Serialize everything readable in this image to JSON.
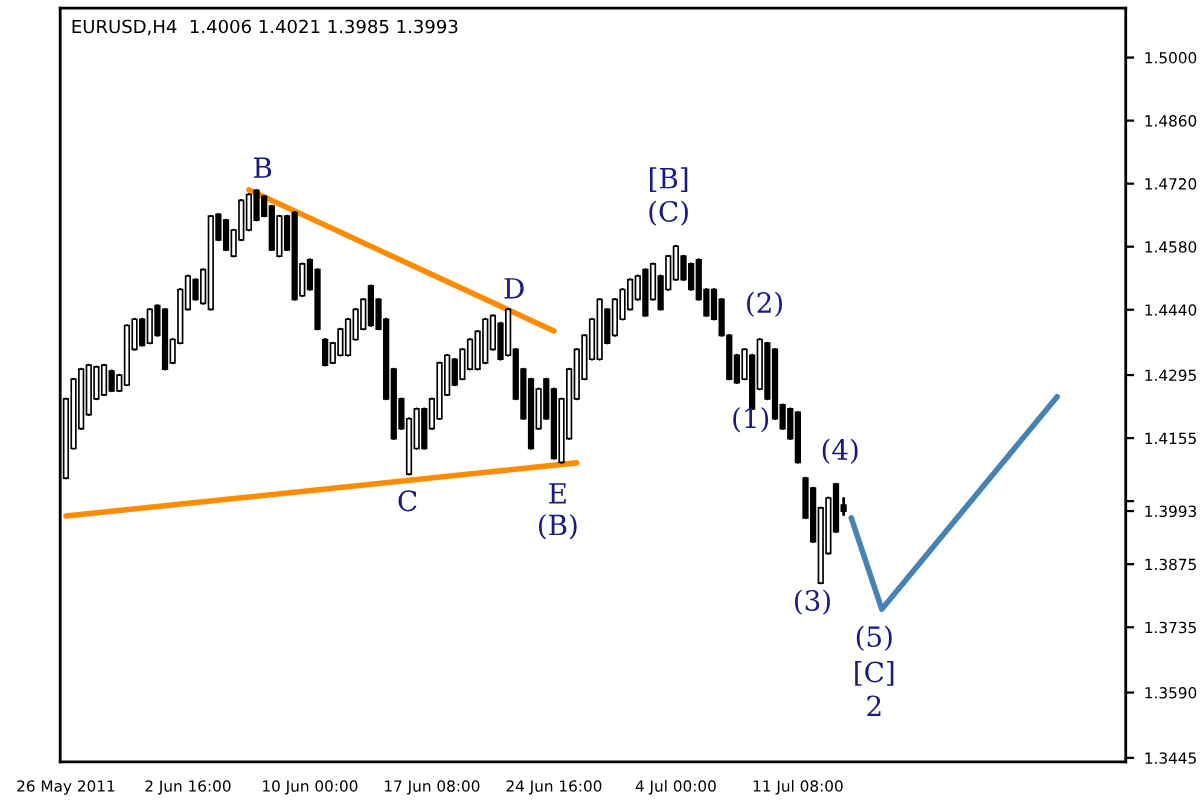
{
  "chart_data": {
    "type": "candlestick",
    "title": "EURUSD,H4  1.4006 1.4021 1.3985 1.3993",
    "categories": [
      "26 May 2011",
      null,
      null,
      null,
      null,
      null,
      null,
      null,
      null,
      null,
      null,
      null,
      null,
      null,
      null,
      null,
      "2 Jun 16:00",
      null,
      null,
      null,
      null,
      null,
      null,
      null,
      null,
      null,
      null,
      null,
      null,
      null,
      null,
      null,
      "10 Jun 00:00",
      null,
      null,
      null,
      null,
      null,
      null,
      null,
      null,
      null,
      null,
      null,
      null,
      null,
      null,
      null,
      "17 Jun 08:00",
      null,
      null,
      null,
      null,
      null,
      null,
      null,
      null,
      null,
      null,
      null,
      null,
      null,
      null,
      null,
      "24 Jun 16:00",
      null,
      null,
      null,
      null,
      null,
      null,
      null,
      null,
      null,
      null,
      null,
      null,
      null,
      null,
      null,
      "4 Jul 00:00",
      null,
      null,
      null,
      null,
      null,
      null,
      null,
      null,
      null,
      null,
      null,
      null,
      null,
      null,
      null,
      "11 Jul 08:00",
      null,
      null,
      null,
      null,
      null,
      null,
      null,
      null,
      null,
      null,
      null,
      null,
      null,
      null,
      null,
      null,
      null,
      null,
      null,
      null,
      null,
      null,
      null,
      null,
      null,
      null,
      null,
      null,
      null,
      null,
      null,
      null,
      null,
      null,
      null,
      null,
      null,
      null,
      null,
      null,
      null,
      null,
      null
    ],
    "ohlc": [
      [
        1.4066,
        1.4242,
        1.4066,
        1.4242
      ],
      [
        1.4132,
        1.4286,
        1.4132,
        1.4286
      ],
      [
        1.4176,
        1.4308,
        1.4176,
        1.4308
      ],
      [
        1.4207,
        1.4317,
        1.4207,
        1.4317
      ],
      [
        1.4242,
        1.4313,
        1.4242,
        1.4313
      ],
      [
        1.4251,
        1.4317,
        1.4251,
        1.4317
      ],
      [
        1.4304,
        1.4304,
        1.426,
        1.426
      ],
      [
        1.426,
        1.4295,
        1.426,
        1.4295
      ],
      [
        1.4273,
        1.4405,
        1.4273,
        1.4405
      ],
      [
        1.4352,
        1.4419,
        1.4352,
        1.4419
      ],
      [
        1.4419,
        1.4419,
        1.4361,
        1.4361
      ],
      [
        1.4366,
        1.4441,
        1.4366,
        1.4441
      ],
      [
        1.4449,
        1.4449,
        1.4383,
        1.4383
      ],
      [
        1.4441,
        1.4441,
        1.4308,
        1.4308
      ],
      [
        1.4322,
        1.4374,
        1.4322,
        1.4374
      ],
      [
        1.4366,
        1.4485,
        1.4366,
        1.4485
      ],
      [
        1.4441,
        1.4515,
        1.4441,
        1.4515
      ],
      [
        1.4507,
        1.4507,
        1.4463,
        1.4463
      ],
      [
        1.4454,
        1.4529,
        1.4454,
        1.4529
      ],
      [
        1.4441,
        1.4648,
        1.4441,
        1.4648
      ],
      [
        1.4652,
        1.4652,
        1.4595,
        1.4595
      ],
      [
        1.4639,
        1.4639,
        1.4573,
        1.4573
      ],
      [
        1.4559,
        1.4617,
        1.4559,
        1.4617
      ],
      [
        1.4595,
        1.4683,
        1.4595,
        1.4683
      ],
      [
        1.4617,
        1.4696,
        1.4617,
        1.4696
      ],
      [
        1.4705,
        1.4705,
        1.4639,
        1.4639
      ],
      [
        1.4692,
        1.4692,
        1.4648,
        1.4648
      ],
      [
        1.467,
        1.467,
        1.4573,
        1.4573
      ],
      [
        1.4559,
        1.4648,
        1.4559,
        1.4648
      ],
      [
        1.4648,
        1.4648,
        1.4573,
        1.4573
      ],
      [
        1.4656,
        1.4656,
        1.4463,
        1.4463
      ],
      [
        1.4471,
        1.4542,
        1.4471,
        1.4542
      ],
      [
        1.4551,
        1.4551,
        1.4485,
        1.4485
      ],
      [
        1.4529,
        1.4529,
        1.4397,
        1.4397
      ],
      [
        1.4374,
        1.4374,
        1.4317,
        1.4317
      ],
      [
        1.4322,
        1.4366,
        1.4322,
        1.4366
      ],
      [
        1.4339,
        1.4397,
        1.4339,
        1.4397
      ],
      [
        1.4339,
        1.4419,
        1.4339,
        1.4419
      ],
      [
        1.4374,
        1.4441,
        1.4374,
        1.4441
      ],
      [
        1.4397,
        1.4463,
        1.4397,
        1.4463
      ],
      [
        1.4493,
        1.4493,
        1.4405,
        1.4405
      ],
      [
        1.4463,
        1.4463,
        1.4397,
        1.4397
      ],
      [
        1.4419,
        1.4419,
        1.4242,
        1.4242
      ],
      [
        1.4308,
        1.4308,
        1.4154,
        1.4154
      ],
      [
        1.4242,
        1.4242,
        1.4176,
        1.4176
      ],
      [
        1.4075,
        1.4198,
        1.4075,
        1.4198
      ],
      [
        1.4132,
        1.422,
        1.4132,
        1.422
      ],
      [
        1.422,
        1.422,
        1.4132,
        1.4132
      ],
      [
        1.4176,
        1.4242,
        1.4176,
        1.4242
      ],
      [
        1.4198,
        1.4322,
        1.4198,
        1.4322
      ],
      [
        1.4251,
        1.4339,
        1.4251,
        1.4339
      ],
      [
        1.433,
        1.433,
        1.4273,
        1.4273
      ],
      [
        1.4286,
        1.4352,
        1.4286,
        1.4352
      ],
      [
        1.4308,
        1.4374,
        1.4308,
        1.4374
      ],
      [
        1.4308,
        1.4392,
        1.4308,
        1.4392
      ],
      [
        1.4322,
        1.4419,
        1.4322,
        1.4419
      ],
      [
        1.4352,
        1.4427,
        1.4352,
        1.4427
      ],
      [
        1.441,
        1.441,
        1.433,
        1.433
      ],
      [
        1.4339,
        1.4441,
        1.4339,
        1.4441
      ],
      [
        1.4352,
        1.4352,
        1.4242,
        1.4242
      ],
      [
        1.4308,
        1.4308,
        1.4198,
        1.4198
      ],
      [
        1.4286,
        1.4286,
        1.4132,
        1.4132
      ],
      [
        1.4176,
        1.4264,
        1.4176,
        1.4264
      ],
      [
        1.4286,
        1.4286,
        1.4198,
        1.4198
      ],
      [
        1.4264,
        1.4264,
        1.411,
        1.411
      ],
      [
        1.4101,
        1.4242,
        1.4101,
        1.4242
      ],
      [
        1.4154,
        1.4308,
        1.4154,
        1.4308
      ],
      [
        1.4242,
        1.4352,
        1.4242,
        1.4352
      ],
      [
        1.4286,
        1.4383,
        1.4286,
        1.4383
      ],
      [
        1.433,
        1.4419,
        1.433,
        1.4419
      ],
      [
        1.433,
        1.4463,
        1.433,
        1.4463
      ],
      [
        1.4441,
        1.4441,
        1.4366,
        1.4366
      ],
      [
        1.4383,
        1.4463,
        1.4383,
        1.4463
      ],
      [
        1.4419,
        1.4485,
        1.4419,
        1.4485
      ],
      [
        1.4441,
        1.4507,
        1.4441,
        1.4507
      ],
      [
        1.4463,
        1.4515,
        1.4463,
        1.4515
      ],
      [
        1.4529,
        1.4529,
        1.4427,
        1.4427
      ],
      [
        1.4463,
        1.4542,
        1.4463,
        1.4542
      ],
      [
        1.4515,
        1.4515,
        1.4441,
        1.4441
      ],
      [
        1.4485,
        1.4559,
        1.4485,
        1.4559
      ],
      [
        1.4507,
        1.4581,
        1.4507,
        1.4581
      ],
      [
        1.4559,
        1.4559,
        1.4507,
        1.4507
      ],
      [
        1.4542,
        1.4542,
        1.4485,
        1.4485
      ],
      [
        1.4551,
        1.4551,
        1.4463,
        1.4463
      ],
      [
        1.4485,
        1.4485,
        1.4427,
        1.4427
      ],
      [
        1.4485,
        1.4485,
        1.4419,
        1.4419
      ],
      [
        1.4463,
        1.4463,
        1.4383,
        1.4383
      ],
      [
        1.4383,
        1.4383,
        1.4286,
        1.4286
      ],
      [
        1.4339,
        1.4339,
        1.4278,
        1.4278
      ],
      [
        1.4286,
        1.4352,
        1.4286,
        1.4352
      ],
      [
        1.4339,
        1.4339,
        1.422,
        1.422
      ],
      [
        1.4264,
        1.4374,
        1.4264,
        1.4374
      ],
      [
        1.4366,
        1.4366,
        1.4242,
        1.4242
      ],
      [
        1.4352,
        1.4352,
        1.4198,
        1.4198
      ],
      [
        1.4229,
        1.4229,
        1.4176,
        1.4176
      ],
      [
        1.422,
        1.422,
        1.4154,
        1.4154
      ],
      [
        1.4212,
        1.4212,
        1.4101,
        1.4101
      ],
      [
        1.4066,
        1.4066,
        1.3978,
        1.3978
      ],
      [
        1.4044,
        1.4044,
        1.3925,
        1.3925
      ],
      [
        1.3833,
        1.4,
        1.3833,
        1.4
      ],
      [
        1.3899,
        1.4022,
        1.3899,
        1.4022
      ],
      [
        1.4053,
        1.4053,
        1.3947,
        1.3947
      ],
      [
        1.4006,
        1.4021,
        1.3985,
        1.3993
      ],
      null,
      null,
      null,
      null,
      null,
      null,
      null,
      null,
      null,
      null,
      null,
      null,
      null,
      null,
      null,
      null,
      null,
      null,
      null,
      null,
      null,
      null,
      null,
      null,
      null,
      null,
      null,
      null,
      null,
      null,
      null,
      null,
      null,
      null,
      null,
      null,
      null
    ],
    "color": "#000000",
    "series": [
      {
        "type": "line",
        "color": "#ff8c00",
        "values": [
          null,
          null,
          null,
          null,
          null,
          null,
          null,
          null,
          null,
          null,
          null,
          null,
          null,
          null,
          null,
          null,
          null,
          null,
          null,
          null,
          null,
          null,
          null,
          null,
          1.4706,
          null,
          null,
          null,
          null,
          null,
          null,
          null,
          null,
          null,
          null,
          null,
          null,
          null,
          null,
          null,
          null,
          null,
          null,
          null,
          null,
          null,
          null,
          null,
          null,
          null,
          null,
          null,
          null,
          null,
          null,
          null,
          null,
          null,
          null,
          null,
          null,
          null,
          null,
          null,
          1.4393,
          null,
          null,
          null,
          null,
          null,
          null,
          null,
          null,
          null,
          null,
          null,
          null,
          null,
          null,
          null,
          null,
          null,
          null,
          null,
          null,
          null,
          null,
          null,
          null,
          null,
          null,
          null,
          null,
          null,
          null,
          null,
          null,
          null,
          null,
          null,
          null,
          null,
          null,
          null,
          null,
          null,
          null,
          null,
          null,
          null,
          null,
          null,
          null,
          null,
          null,
          null,
          null,
          null,
          null,
          null,
          null,
          null,
          null,
          null,
          null,
          null,
          null,
          null,
          null,
          null,
          null,
          null,
          null,
          null,
          null,
          null,
          null,
          null,
          null,
          null
        ]
      },
      {
        "type": "line",
        "color": "#ff8c00",
        "values": [
          1.3982,
          null,
          null,
          null,
          null,
          null,
          null,
          null,
          null,
          null,
          null,
          null,
          null,
          null,
          null,
          null,
          null,
          null,
          null,
          null,
          null,
          null,
          null,
          null,
          null,
          null,
          null,
          null,
          null,
          null,
          null,
          null,
          null,
          null,
          null,
          null,
          null,
          null,
          null,
          null,
          null,
          null,
          null,
          null,
          null,
          null,
          null,
          null,
          null,
          null,
          null,
          null,
          null,
          null,
          null,
          null,
          null,
          null,
          null,
          null,
          null,
          null,
          null,
          null,
          null,
          null,
          null,
          1.41,
          null,
          null,
          null,
          null,
          null,
          null,
          null,
          null,
          null,
          null,
          null,
          null,
          null,
          null,
          null,
          null,
          null,
          null,
          null,
          null,
          null,
          null,
          null,
          null,
          null,
          null,
          null,
          null,
          null,
          null,
          null,
          null,
          null,
          null,
          null,
          null,
          null,
          null,
          null,
          null,
          null,
          null,
          null,
          null,
          null,
          null,
          null,
          null,
          null,
          null,
          null,
          null,
          null,
          null,
          null,
          null,
          null,
          null,
          null,
          null,
          null,
          null,
          null,
          null,
          null,
          null,
          null,
          null,
          null,
          null,
          null,
          null
        ]
      },
      {
        "type": "line",
        "color": "#4682b4",
        "values": [
          null,
          null,
          null,
          null,
          null,
          null,
          null,
          null,
          null,
          null,
          null,
          null,
          null,
          null,
          null,
          null,
          null,
          null,
          null,
          null,
          null,
          null,
          null,
          null,
          null,
          null,
          null,
          null,
          null,
          null,
          null,
          null,
          null,
          null,
          null,
          null,
          null,
          null,
          null,
          null,
          null,
          null,
          null,
          null,
          null,
          null,
          null,
          null,
          null,
          null,
          null,
          null,
          null,
          null,
          null,
          null,
          null,
          null,
          null,
          null,
          null,
          null,
          null,
          null,
          null,
          null,
          null,
          null,
          null,
          null,
          null,
          null,
          null,
          null,
          null,
          null,
          null,
          null,
          null,
          null,
          null,
          null,
          null,
          null,
          null,
          null,
          null,
          null,
          null,
          null,
          null,
          null,
          null,
          null,
          null,
          null,
          null,
          null,
          null,
          null,
          null,
          null,
          null,
          1.3978,
          null,
          null,
          null,
          1.3775,
          null,
          null,
          null,
          null,
          null,
          null,
          null,
          null,
          null,
          null,
          null,
          null,
          null,
          null,
          null,
          null,
          null,
          null,
          null,
          null,
          null,
          null,
          1.4247,
          null,
          null,
          null,
          null,
          null,
          null,
          null,
          null,
          null
        ]
      }
    ],
    "annotations": [
      "B",
      "D",
      "C",
      "E",
      "(B)",
      "[B]",
      "(C)",
      "(2)",
      "(1)",
      "(4)",
      "(3)",
      "(5)",
      "[C]",
      "2"
    ],
    "ylim": [
      1.3436,
      1.511
    ],
    "yticks": [
      {
        "value": 1.5,
        "label": "1.5000"
      },
      {
        "value": 1.486,
        "label": "1.4860"
      },
      {
        "value": 1.472,
        "label": "1.4720"
      },
      {
        "value": 1.458,
        "label": "1.4580"
      },
      {
        "value": 1.444,
        "label": "1.4440"
      },
      {
        "value": 1.4295,
        "label": "1.4295"
      },
      {
        "value": 1.4155,
        "label": "1.4155"
      },
      {
        "value": 1.4015,
        "label": null
      },
      {
        "value": 1.3993,
        "label": "1.3993"
      },
      {
        "value": 1.3875,
        "label": "1.3875"
      },
      {
        "value": 1.3735,
        "label": "1.3735"
      },
      {
        "value": 1.359,
        "label": "1.3590"
      },
      {
        "value": 1.3445,
        "label": "1.3445"
      }
    ]
  }
}
